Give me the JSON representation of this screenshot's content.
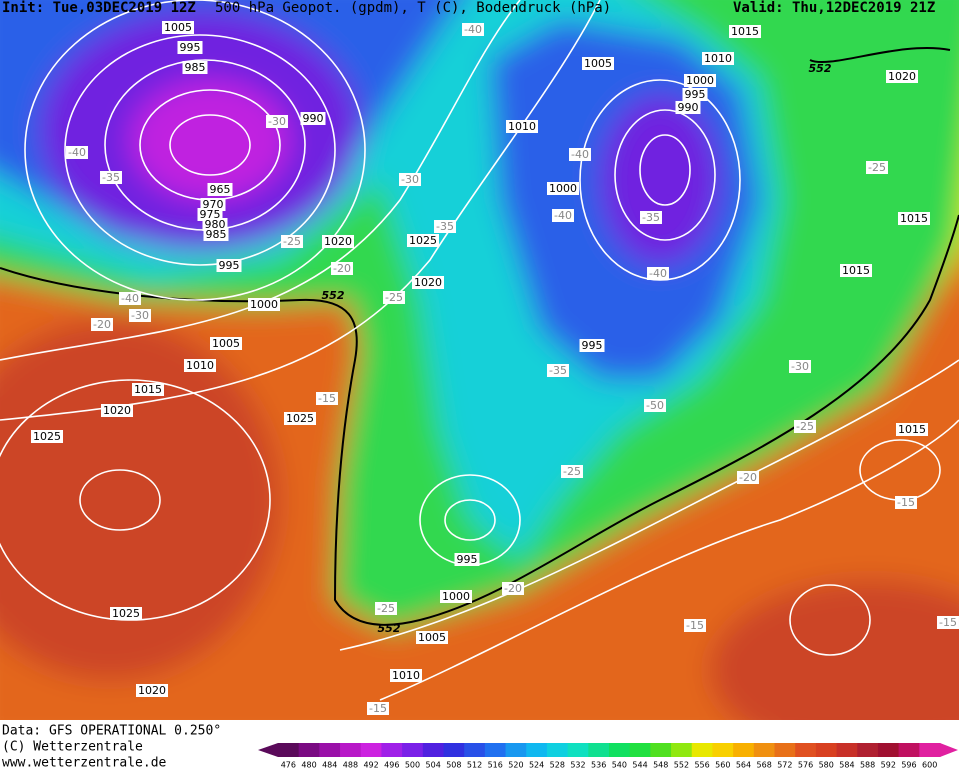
{
  "header": {
    "init": "Init: Tue,03DEC2019 12Z",
    "title": "500 hPa Geopot. (gpdm), T (C), Bodendruck (hPa)",
    "valid": "Valid: Thu,12DEC2019 21Z"
  },
  "footer": {
    "data": "Data: GFS OPERATIONAL 0.250°",
    "copyright": "(C) Wetterzentrale",
    "url": "www.wetterzentrale.de"
  },
  "colorbar": {
    "levels": [
      476,
      480,
      484,
      488,
      492,
      496,
      500,
      504,
      508,
      512,
      516,
      520,
      524,
      528,
      532,
      536,
      540,
      544,
      548,
      552,
      556,
      560,
      564,
      568,
      572,
      576,
      580,
      584,
      588,
      592,
      596,
      600
    ],
    "colors": [
      "#5a0a5a",
      "#7a0a82",
      "#9a10a8",
      "#b818c8",
      "#cc22e0",
      "#a020e8",
      "#7a20e8",
      "#5020e0",
      "#3030e0",
      "#2850e8",
      "#2070f0",
      "#1898f0",
      "#10b8f0",
      "#10d0e0",
      "#10e0c0",
      "#10e090",
      "#10e060",
      "#20e040",
      "#50e020",
      "#90e810",
      "#e8e800",
      "#f8d000",
      "#f8b000",
      "#f09010",
      "#e87018",
      "#e05020",
      "#d84020",
      "#c83028",
      "#b02030",
      "#a01030",
      "#c01060",
      "#e020a0"
    ]
  },
  "map_labels": [
    "1005",
    "995",
    "985",
    "990",
    "-30",
    "-40",
    "-35",
    "965",
    "970",
    "975",
    "980",
    "985",
    "995",
    "1000",
    "1005",
    "1010",
    "1015",
    "1020",
    "1025",
    "1025",
    "1020",
    "1025",
    "-15",
    "-20",
    "-25",
    "1020",
    "1025",
    "1020",
    "-25",
    "552",
    "-35",
    "-30",
    "-40",
    "-40",
    "-30",
    "-20",
    "1010",
    "1005",
    "1010",
    "1015",
    "1000",
    "995",
    "990",
    "552",
    "1020",
    "-25",
    "1015",
    "1015",
    "-40",
    "1000",
    "-40",
    "-35",
    "-40",
    "995",
    "-35",
    "-30",
    "-50",
    "-25",
    "1015",
    "-20",
    "-15",
    "-25",
    "995",
    "1000",
    "-20",
    "-25",
    "552",
    "1005",
    "1010",
    "-15",
    "-15",
    "-15"
  ]
}
